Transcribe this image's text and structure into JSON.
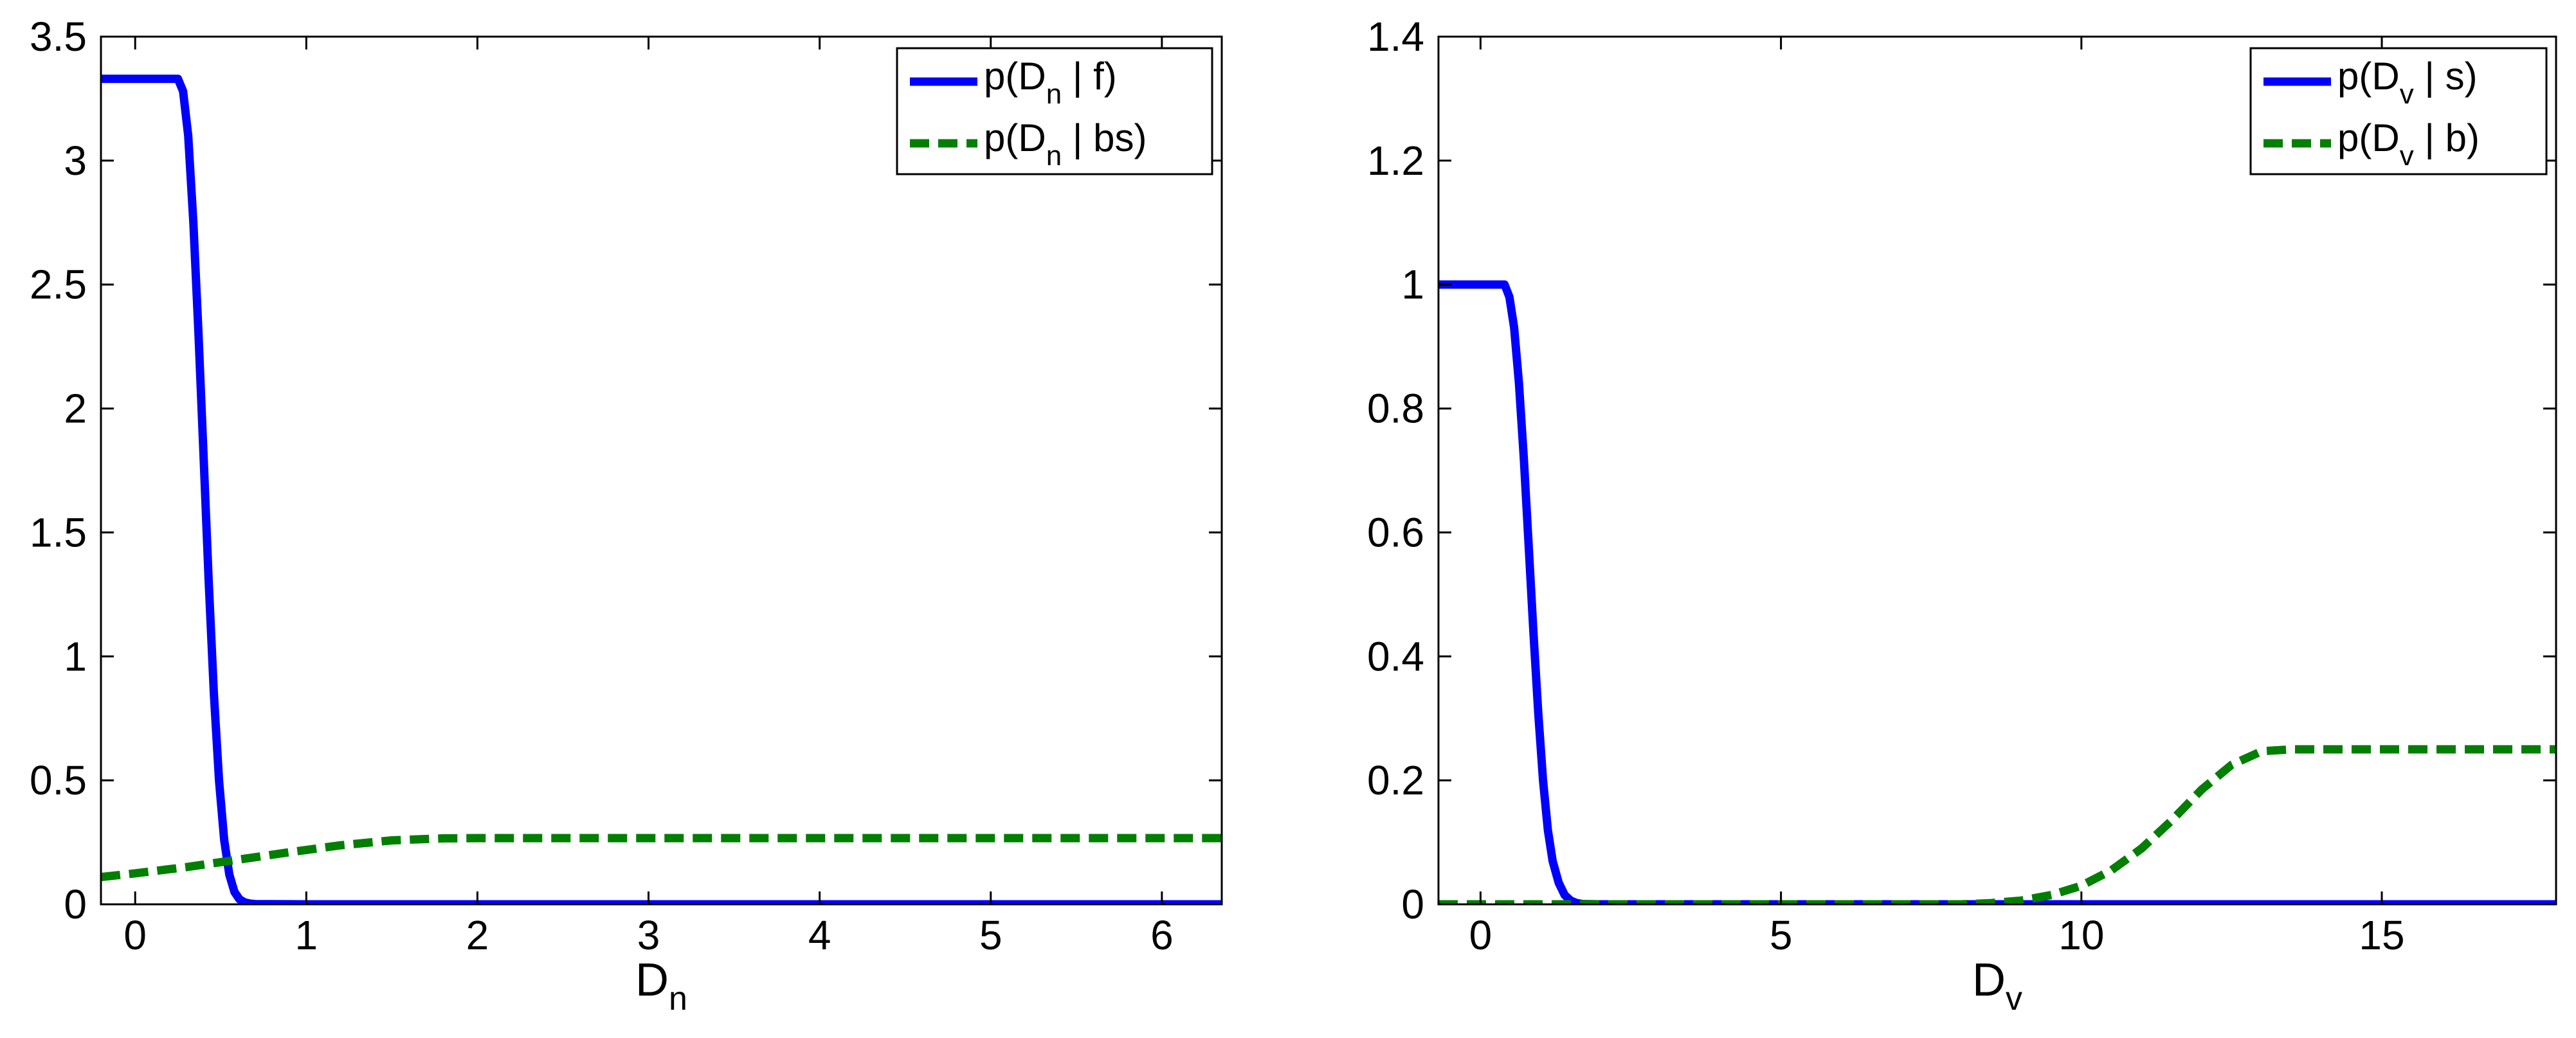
{
  "chart_data": [
    {
      "type": "line",
      "xlabel": {
        "main": "D",
        "sub": "n"
      },
      "ylabel": "",
      "xlim": [
        -0.2,
        6.35
      ],
      "ylim": [
        0,
        3.5
      ],
      "xticks": [
        0,
        1,
        2,
        3,
        4,
        5,
        6
      ],
      "yticks": [
        0,
        0.5,
        1,
        1.5,
        2,
        2.5,
        3,
        3.5
      ],
      "grid": false,
      "legend_position": "top-right",
      "series": [
        {
          "name": "p(D_n | f)",
          "legend": {
            "pre": "p(D",
            "sub": "n",
            "post": " | f)"
          },
          "color": "#0000ff",
          "style": "solid",
          "x": [
            -0.2,
            0.25,
            0.28,
            0.31,
            0.34,
            0.37,
            0.4,
            0.43,
            0.46,
            0.49,
            0.52,
            0.55,
            0.58,
            0.61,
            0.64,
            0.67,
            0.7,
            1.0,
            6.35
          ],
          "y": [
            3.33,
            3.33,
            3.28,
            3.1,
            2.75,
            2.3,
            1.8,
            1.3,
            0.85,
            0.5,
            0.26,
            0.12,
            0.05,
            0.02,
            0.008,
            0.003,
            0.001,
            0.0,
            0.0
          ]
        },
        {
          "name": "p(D_n | bs)",
          "legend": {
            "pre": "p(D",
            "sub": "n",
            "post": " | bs)"
          },
          "color": "#007f00",
          "style": "dashed",
          "x": [
            -0.2,
            0.0,
            0.3,
            0.6,
            0.9,
            1.2,
            1.5,
            1.8,
            2.0,
            3.0,
            4.0,
            5.0,
            6.35
          ],
          "y": [
            0.11,
            0.125,
            0.15,
            0.18,
            0.21,
            0.238,
            0.258,
            0.266,
            0.267,
            0.267,
            0.267,
            0.267,
            0.267
          ]
        }
      ]
    },
    {
      "type": "line",
      "xlabel": {
        "main": "D",
        "sub": "v"
      },
      "ylabel": "",
      "xlim": [
        -0.7,
        17.9
      ],
      "ylim": [
        0,
        1.4
      ],
      "xticks": [
        0,
        5,
        10,
        15
      ],
      "yticks": [
        0,
        0.2,
        0.4,
        0.6,
        0.8,
        1,
        1.2,
        1.4
      ],
      "grid": false,
      "legend_position": "top-right",
      "series": [
        {
          "name": "p(D_v | s)",
          "legend": {
            "pre": "p(D",
            "sub": "v",
            "post": " | s)"
          },
          "color": "#0000ff",
          "style": "solid",
          "x": [
            -0.7,
            0.4,
            0.48,
            0.56,
            0.64,
            0.72,
            0.8,
            0.88,
            0.96,
            1.04,
            1.12,
            1.2,
            1.3,
            1.4,
            1.5,
            1.6,
            1.7,
            2.0,
            17.9
          ],
          "y": [
            1.0,
            1.0,
            0.98,
            0.93,
            0.84,
            0.72,
            0.58,
            0.44,
            0.31,
            0.2,
            0.12,
            0.07,
            0.035,
            0.015,
            0.006,
            0.002,
            0.0005,
            0.0,
            0.0
          ]
        },
        {
          "name": "p(D_v | b)",
          "legend": {
            "pre": "p(D",
            "sub": "v",
            "post": " | b)"
          },
          "color": "#007f00",
          "style": "dashed",
          "x": [
            -0.7,
            0,
            2,
            4,
            6,
            8,
            8.5,
            9,
            9.5,
            10,
            10.5,
            11,
            11.5,
            12,
            12.5,
            13,
            13.5,
            15,
            17.9
          ],
          "y": [
            0.0,
            0.0,
            0.0,
            0.0,
            0.0,
            0.0,
            0.002,
            0.006,
            0.015,
            0.03,
            0.055,
            0.09,
            0.135,
            0.185,
            0.225,
            0.247,
            0.25,
            0.25,
            0.25
          ]
        }
      ]
    }
  ]
}
